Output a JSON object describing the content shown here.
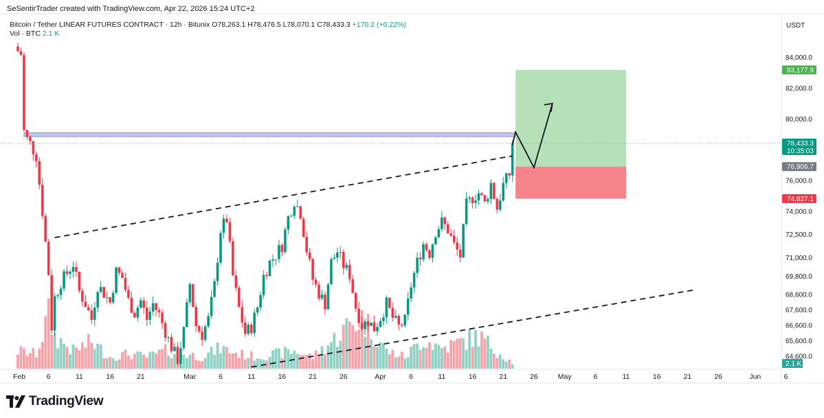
{
  "credit": "SeSentirTrader created with TradingView.com, Apr 22, 2026 15:24 UTC+2",
  "symbol": {
    "name": "Bitcoin / Tether LINEAR FUTURES CONTRACT · 12h · Bitunix",
    "ohlc": "O78,263.1 H78,476.5 L78,070.1 C78,433.3",
    "change": "+170.2 (+0.22%)"
  },
  "volume": {
    "label": "Vol · BTC",
    "value": "2.1 K"
  },
  "logo_text": "TradingView",
  "colors": {
    "up": "#089981",
    "down": "#f23645",
    "vol_up": "#8fd1c4",
    "vol_down": "#f5a3a8",
    "resistance": "#aab4e8",
    "target": "#b2dfb4",
    "stop": "#f77c85"
  },
  "chart_data": {
    "type": "candlestick",
    "timeframe": "12h",
    "currency": "USDT",
    "y_range": [
      63800,
      85400
    ],
    "y_ticks": [
      {
        "label": "84,000.0",
        "value": 84000
      },
      {
        "label": "82,000.0",
        "value": 82000
      },
      {
        "label": "80,000.0",
        "value": 80000
      },
      {
        "label": "76,000.0",
        "value": 76000
      },
      {
        "label": "74,000.0",
        "value": 74000
      },
      {
        "label": "72,500.0",
        "value": 72500
      },
      {
        "label": "71,000.0",
        "value": 71000
      },
      {
        "label": "69,800.0",
        "value": 69800
      },
      {
        "label": "68,600.0",
        "value": 68600
      },
      {
        "label": "67,600.0",
        "value": 67600
      },
      {
        "label": "66,600.0",
        "value": 66600
      },
      {
        "label": "65,600.0",
        "value": 65600
      },
      {
        "label": "64,600.0",
        "value": 64600
      }
    ],
    "price_tags": [
      {
        "label": "83,177.9",
        "value": 83178,
        "color": "#4caf50"
      },
      {
        "label": "78,433.3",
        "sub": "10:35:03",
        "value": 78433,
        "color": "#089981"
      },
      {
        "label": "76,906.7",
        "value": 76907,
        "color": "#787b86"
      },
      {
        "label": "74,827.1",
        "value": 74827,
        "color": "#f23645"
      }
    ],
    "volume_tag": "2.1 K",
    "x_ticks": [
      {
        "label": "Feb",
        "day": 0
      },
      {
        "label": "6",
        "day": 5
      },
      {
        "label": "11",
        "day": 10
      },
      {
        "label": "16",
        "day": 15
      },
      {
        "label": "21",
        "day": 20
      },
      {
        "label": "Mar",
        "day": 28
      },
      {
        "label": "6",
        "day": 33
      },
      {
        "label": "11",
        "day": 38
      },
      {
        "label": "16",
        "day": 43
      },
      {
        "label": "21",
        "day": 48
      },
      {
        "label": "26",
        "day": 53
      },
      {
        "label": "Apr",
        "day": 59
      },
      {
        "label": "6",
        "day": 64
      },
      {
        "label": "11",
        "day": 69
      },
      {
        "label": "16",
        "day": 74
      },
      {
        "label": "21",
        "day": 79
      },
      {
        "label": "26",
        "day": 84
      },
      {
        "label": "May",
        "day": 89
      },
      {
        "label": "6",
        "day": 94
      },
      {
        "label": "11",
        "day": 99
      },
      {
        "label": "16",
        "day": 104
      },
      {
        "label": "21",
        "day": 109
      },
      {
        "label": "26",
        "day": 114
      },
      {
        "label": "Jun",
        "day": 120
      },
      {
        "label": "6",
        "day": 125
      }
    ],
    "close_path": [
      [
        0,
        84400
      ],
      [
        0.5,
        84200
      ],
      [
        1,
        79200
      ],
      [
        1.5,
        78700
      ],
      [
        2,
        78400
      ],
      [
        3,
        77600
      ],
      [
        4,
        74000
      ],
      [
        5,
        70000
      ],
      [
        5.5,
        66500
      ],
      [
        6,
        68400
      ],
      [
        7,
        69400
      ],
      [
        8,
        70000
      ],
      [
        9,
        70600
      ],
      [
        10,
        68800
      ],
      [
        11,
        68000
      ],
      [
        12,
        67000
      ],
      [
        13,
        69200
      ],
      [
        14,
        68700
      ],
      [
        15,
        68100
      ],
      [
        16,
        70100
      ],
      [
        17,
        69700
      ],
      [
        18,
        68200
      ],
      [
        19,
        67400
      ],
      [
        20,
        68200
      ],
      [
        21,
        67000
      ],
      [
        22,
        68000
      ],
      [
        23,
        67300
      ],
      [
        24,
        66200
      ],
      [
        25,
        65200
      ],
      [
        26,
        64400
      ],
      [
        27,
        66200
      ],
      [
        28,
        69300
      ],
      [
        29,
        66600
      ],
      [
        30,
        66000
      ],
      [
        31,
        67000
      ],
      [
        32,
        69200
      ],
      [
        33,
        72800
      ],
      [
        34,
        73500
      ],
      [
        35,
        69800
      ],
      [
        36,
        67700
      ],
      [
        37,
        66100
      ],
      [
        38,
        66500
      ],
      [
        39,
        67800
      ],
      [
        40,
        69800
      ],
      [
        41,
        70700
      ],
      [
        42,
        71200
      ],
      [
        43,
        71800
      ],
      [
        44,
        73600
      ],
      [
        45,
        74700
      ],
      [
        46,
        73900
      ],
      [
        47,
        71500
      ],
      [
        48,
        69600
      ],
      [
        49,
        68700
      ],
      [
        50,
        68000
      ],
      [
        51,
        70700
      ],
      [
        52,
        71400
      ],
      [
        53,
        70500
      ],
      [
        54,
        69900
      ],
      [
        55,
        67800
      ],
      [
        56,
        66600
      ],
      [
        57,
        66900
      ],
      [
        58,
        66400
      ],
      [
        59,
        67100
      ],
      [
        60,
        68000
      ],
      [
        61,
        67100
      ],
      [
        62,
        66500
      ],
      [
        63,
        66900
      ],
      [
        64,
        69200
      ],
      [
        65,
        70700
      ],
      [
        66,
        71900
      ],
      [
        67,
        71300
      ],
      [
        68,
        72700
      ],
      [
        69,
        73300
      ],
      [
        70,
        72800
      ],
      [
        71,
        71800
      ],
      [
        72,
        71100
      ],
      [
        73,
        74400
      ],
      [
        74,
        74900
      ],
      [
        75,
        75200
      ],
      [
        76,
        74500
      ],
      [
        77,
        75800
      ],
      [
        78,
        74200
      ],
      [
        79,
        75700
      ],
      [
        80,
        76400
      ],
      [
        80.5,
        78433
      ]
    ],
    "volume_profile": [
      [
        0,
        0.3
      ],
      [
        3,
        0.25
      ],
      [
        5,
        0.9
      ],
      [
        6,
        0.55
      ],
      [
        9,
        0.3
      ],
      [
        12,
        0.45
      ],
      [
        15,
        0.2
      ],
      [
        18,
        0.25
      ],
      [
        21,
        0.2
      ],
      [
        24,
        0.3
      ],
      [
        27,
        0.25
      ],
      [
        30,
        0.2
      ],
      [
        33,
        0.35
      ],
      [
        36,
        0.25
      ],
      [
        39,
        0.2
      ],
      [
        42,
        0.25
      ],
      [
        45,
        0.3
      ],
      [
        48,
        0.2
      ],
      [
        51,
        0.45
      ],
      [
        54,
        0.75
      ],
      [
        56,
        0.85
      ],
      [
        58,
        0.6
      ],
      [
        60,
        0.3
      ],
      [
        63,
        0.2
      ],
      [
        66,
        0.5
      ],
      [
        69,
        0.35
      ],
      [
        72,
        0.45
      ],
      [
        75,
        0.55
      ],
      [
        78,
        0.3
      ],
      [
        80.5,
        0.1
      ]
    ],
    "trendlines": [
      {
        "name": "upper-channel-line",
        "from": [
          6,
          72300
        ],
        "to": [
          80.5,
          77600
        ],
        "style": "dashed"
      },
      {
        "name": "lower-channel-line",
        "from": [
          38,
          63900
        ],
        "to": [
          110,
          68900
        ],
        "style": "dashed"
      }
    ],
    "zones": [
      {
        "name": "resistance-zone",
        "from_day": 1,
        "to_day": 81,
        "top": 79100,
        "bottom": 78850
      },
      {
        "name": "target-zone",
        "from_day": 81,
        "to_day": 99,
        "top": 83178,
        "bottom": 76907
      },
      {
        "name": "stop-zone",
        "from_day": 81,
        "to_day": 99,
        "top": 76907,
        "bottom": 74827
      }
    ],
    "projection_path": [
      [
        80.5,
        78300
      ],
      [
        81,
        79150
      ],
      [
        84,
        76850
      ],
      [
        87,
        81000
      ]
    ],
    "last_price": 78433
  }
}
